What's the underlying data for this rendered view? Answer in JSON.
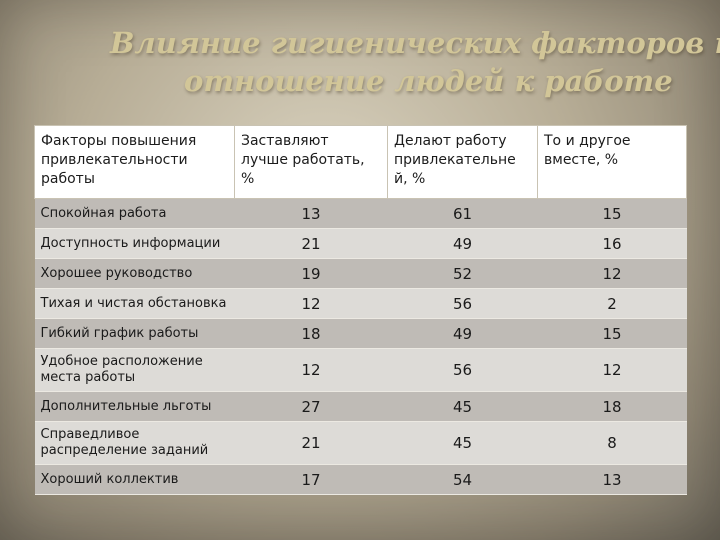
{
  "slide": {
    "title_line1": "Влияние гигиенических факторов на",
    "title_line2": "отношение людей к работе"
  },
  "table": {
    "headers": [
      "Факторы повышения привлекательности работы",
      "Заставляют лучше работать, %",
      "Делают работу привлекательне й, %",
      "То и другое вместе, %"
    ],
    "rows": [
      {
        "factor": "Спокойная работа",
        "better": "13",
        "attractive": "61",
        "both": "15"
      },
      {
        "factor": "Доступность информации",
        "better": "21",
        "attractive": "49",
        "both": "16"
      },
      {
        "factor": "Хорошее руководство",
        "better": "19",
        "attractive": "52",
        "both": "12"
      },
      {
        "factor": "Тихая и чистая обстановка",
        "better": "12",
        "attractive": "56",
        "both": "2"
      },
      {
        "factor": "Гибкий график работы",
        "better": "18",
        "attractive": "49",
        "both": "15"
      },
      {
        "factor": "Удобное расположение места работы",
        "better": "12",
        "attractive": "56",
        "both": "12"
      },
      {
        "factor": "Дополнительные льготы",
        "better": "27",
        "attractive": "45",
        "both": "18"
      },
      {
        "factor": "Справедливое распределение заданий",
        "better": "21",
        "attractive": "45",
        "both": "8"
      },
      {
        "factor": "Хороший коллектив",
        "better": "17",
        "attractive": "54",
        "both": "13"
      }
    ]
  },
  "colors": {
    "title": "#d2c698",
    "row_dark": "#bfbbb6",
    "row_light": "#dddbd7",
    "header_bg": "#ffffff"
  }
}
